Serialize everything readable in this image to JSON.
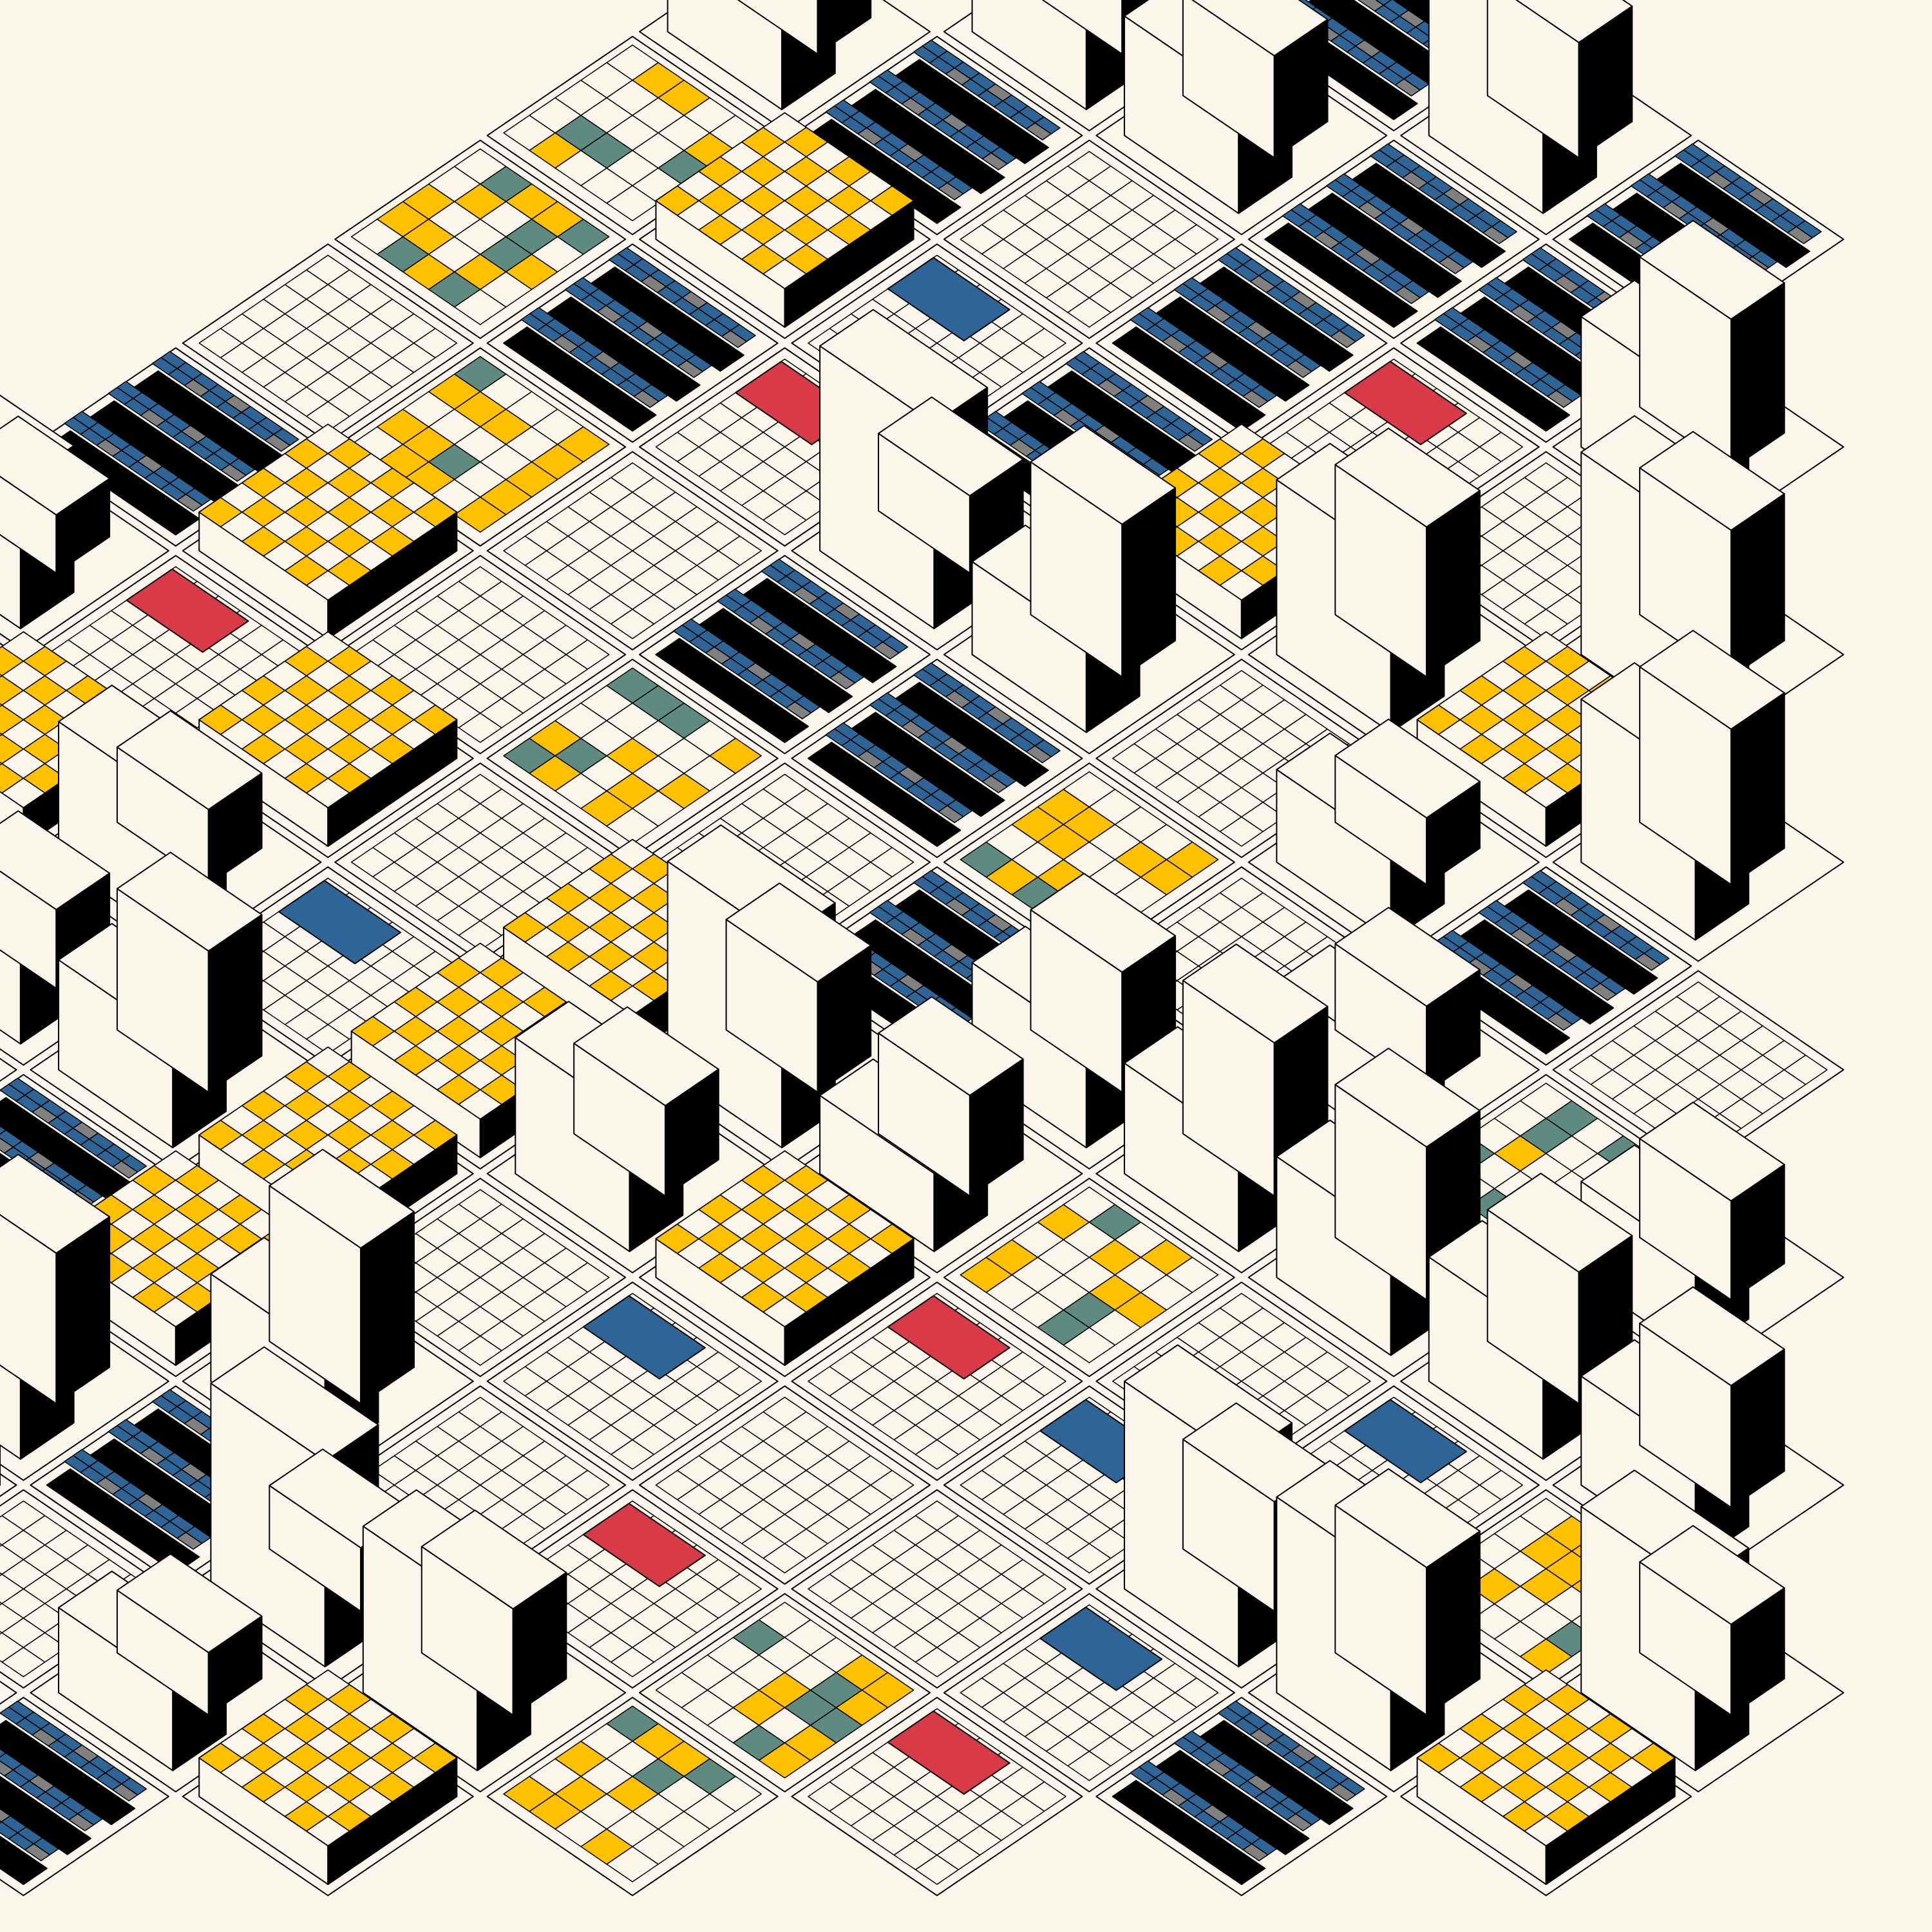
{
  "artwork": {
    "style": "isometric generative city",
    "palette": {
      "paper": "#faf6ec",
      "ink": "#000000",
      "blue": "#2e6496",
      "light_blue": "#5a7db0",
      "yellow": "#ffc000",
      "red": "#d93a48",
      "gray": "#808080",
      "teal_gray": "#5f8a80"
    }
  }
}
